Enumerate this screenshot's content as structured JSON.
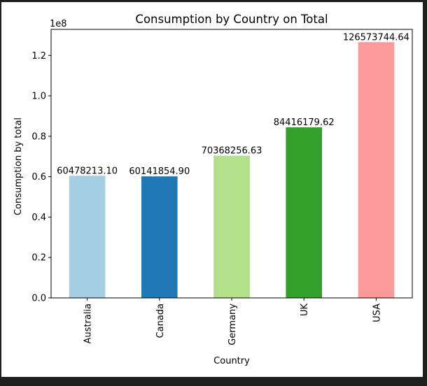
{
  "chart_data": {
    "type": "bar",
    "title": "Consumption by Country on Total",
    "xlabel": "Country",
    "ylabel": "Consumption by total",
    "offset_label": "1e8",
    "categories": [
      "Australia",
      "Canada",
      "Germany",
      "UK",
      "USA"
    ],
    "values": [
      60478213.1,
      60141854.9,
      70368256.63,
      84416179.62,
      126573744.64
    ],
    "data_labels": [
      "60478213.10",
      "60141854.90",
      "70368256.63",
      "84416179.62",
      "126573744.64"
    ],
    "colors": [
      "#a6cee3",
      "#1f78b4",
      "#b2df8a",
      "#33a02c",
      "#fb9a99"
    ],
    "ylim": [
      0,
      132902431.87
    ],
    "yticks": [
      0,
      20000000,
      40000000,
      60000000,
      80000000,
      100000000,
      120000000
    ],
    "ytick_labels": [
      "0.0",
      "0.2",
      "0.4",
      "0.6",
      "0.8",
      "1.0",
      "1.2"
    ],
    "grid": false,
    "legend": "none"
  }
}
